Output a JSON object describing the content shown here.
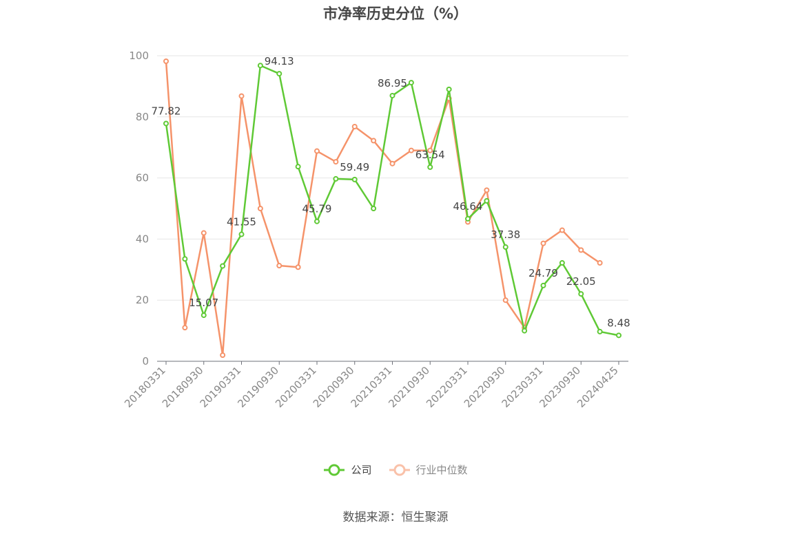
{
  "title": "市净率历史分位（%）",
  "source": "数据来源：恒生聚源",
  "legend": [
    {
      "name": "公司",
      "color": "#5fc935"
    },
    {
      "name": "行业中位数",
      "color": "#f5936a"
    }
  ],
  "chart_data": {
    "type": "line",
    "x_tick_labels": [
      "20180331",
      "20180930",
      "20190331",
      "20190930",
      "20200331",
      "20200930",
      "20210331",
      "20210930",
      "20220331",
      "20220930",
      "20230331",
      "20230930",
      "20240425"
    ],
    "ylim": [
      0,
      100
    ],
    "y_ticks": [
      0,
      20,
      40,
      60,
      80,
      100
    ],
    "grid": true,
    "legend_position": "bottom",
    "series": [
      {
        "name": "公司",
        "color": "#5fc935",
        "values": [
          77.82,
          33.5,
          15.07,
          31.2,
          41.55,
          96.8,
          94.13,
          63.7,
          45.79,
          59.7,
          59.49,
          50.0,
          86.95,
          91.2,
          63.54,
          89.0,
          46.64,
          52.5,
          37.38,
          10.0,
          24.79,
          32.2,
          22.05,
          9.7,
          8.48
        ],
        "labels": {
          "0": "77.82",
          "2": "15.07",
          "4": "41.55",
          "6": "94.13",
          "8": "45.79",
          "10": "59.49",
          "12": "86.95",
          "14": "63.54",
          "16": "46.64",
          "18": "37.38",
          "20": "24.79",
          "22": "22.05",
          "24": "8.48"
        }
      },
      {
        "name": "行业中位数",
        "color": "#f5936a",
        "values": [
          98.2,
          11.0,
          42.0,
          2.0,
          86.8,
          50.0,
          31.3,
          30.8,
          68.8,
          65.3,
          76.8,
          72.2,
          64.7,
          69.0,
          69.0,
          86.0,
          45.6,
          56.0,
          20.0,
          11.0,
          38.6,
          42.9,
          36.4,
          32.2,
          null
        ]
      }
    ]
  }
}
